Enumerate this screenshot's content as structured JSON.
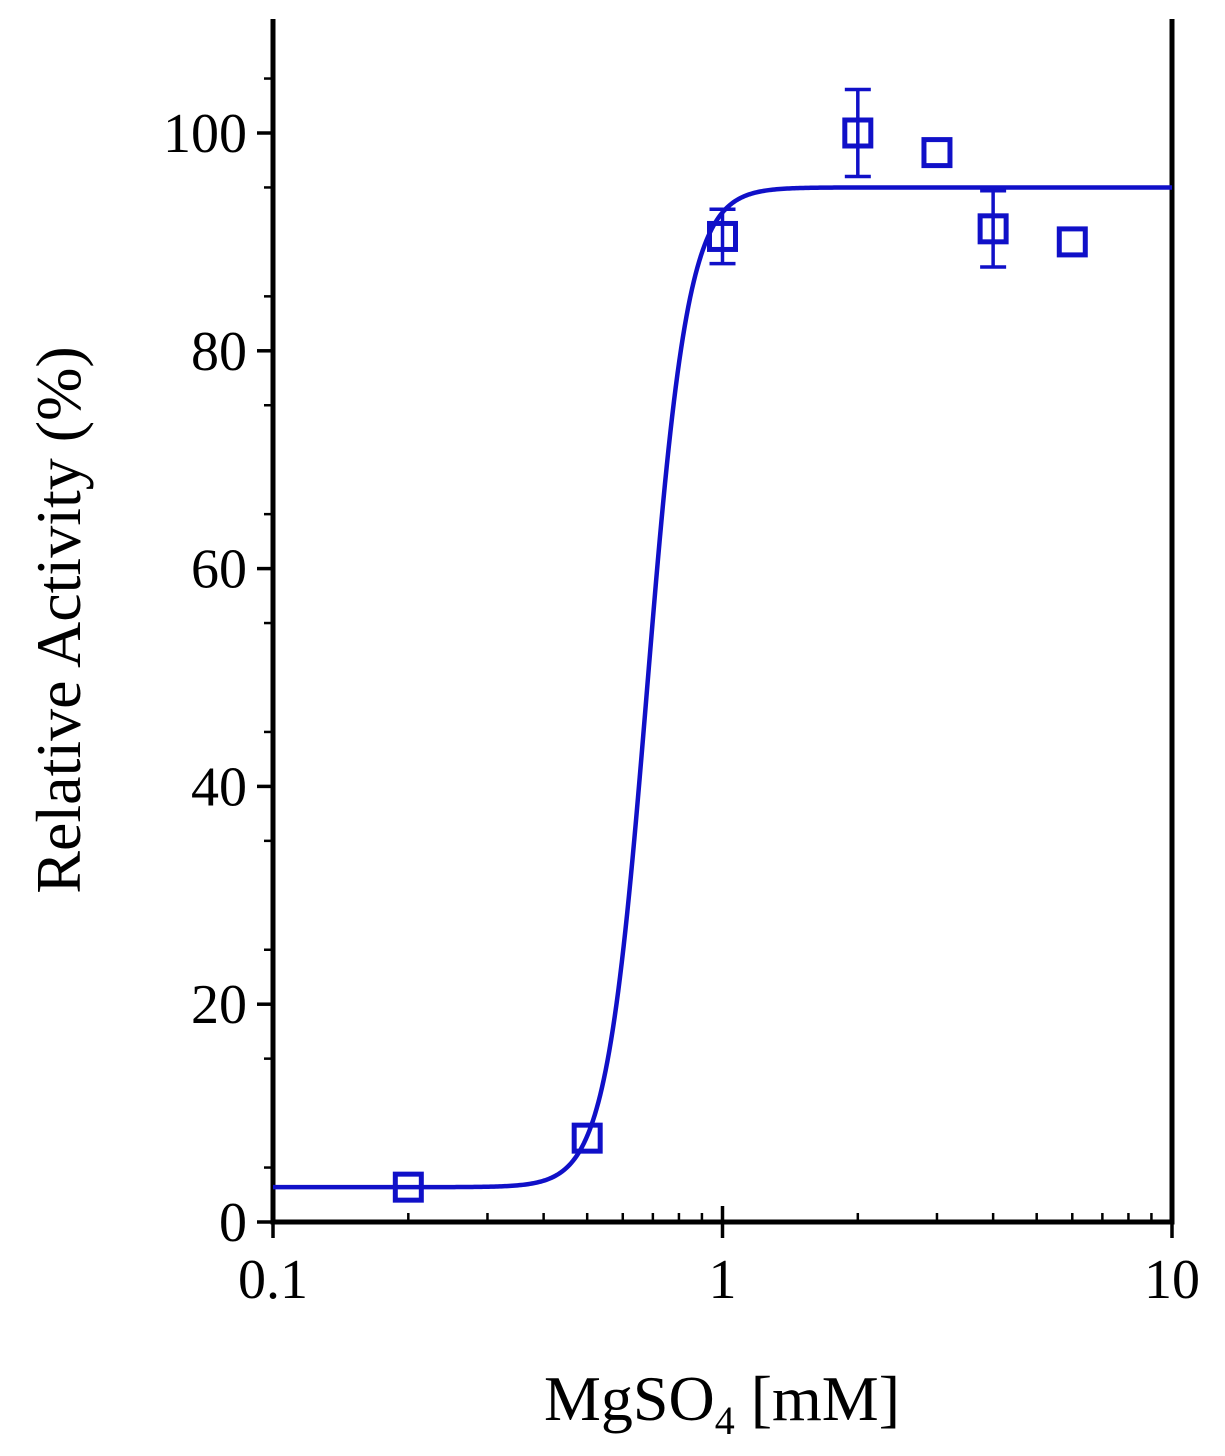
{
  "chart_data": {
    "type": "scatter",
    "xlabel_main": "MgSO",
    "xlabel_sub": "4",
    "xlabel_unit": " [mM]",
    "ylabel": "Relative Activity (%)",
    "x_scale": "log",
    "xlim": [
      0.1,
      10
    ],
    "ylim": [
      0,
      110
    ],
    "x_ticks": [
      0.1,
      1,
      10
    ],
    "x_tick_labels": [
      "0.1",
      "1",
      "10"
    ],
    "y_ticks": [
      0,
      20,
      40,
      60,
      80,
      100
    ],
    "y_tick_labels": [
      "0",
      "20",
      "40",
      "60",
      "80",
      "100"
    ],
    "grid": false,
    "color": "#1010c8",
    "series": [
      {
        "marker": "open-square",
        "points": [
          {
            "x": 0.2,
            "y": 3.2,
            "err": 0
          },
          {
            "x": 0.5,
            "y": 7.7,
            "err": 0
          },
          {
            "x": 1.0,
            "y": 90.5,
            "err": 2.5
          },
          {
            "x": 2.0,
            "y": 100,
            "err": 4
          },
          {
            "x": 3.0,
            "y": 98.2,
            "err": 0
          },
          {
            "x": 4.0,
            "y": 91.2,
            "err": 3.5
          },
          {
            "x": 6.0,
            "y": 90,
            "err": 0
          }
        ]
      }
    ],
    "fit": {
      "bottom": 3.2,
      "top": 95,
      "x50": 0.68,
      "hill": 9.5
    }
  }
}
